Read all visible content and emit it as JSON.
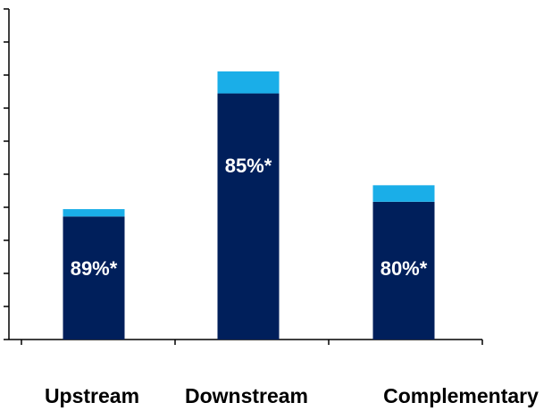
{
  "chart_data": {
    "type": "bar",
    "stacked": true,
    "categories": [
      "Upstream",
      "Downstream",
      "Complementary"
    ],
    "series": [
      {
        "values": [
          67,
          134,
          75
        ],
        "color": "#001f5b"
      },
      {
        "values": [
          4,
          12,
          9
        ],
        "color": "#1aaee8"
      }
    ],
    "data_labels": [
      "89%*",
      "85%*",
      "80%*"
    ],
    "ylim": [
      0,
      180
    ],
    "y_tick_count": 10,
    "y_tick_labels_shown": false,
    "grid": false,
    "legend": "none"
  }
}
